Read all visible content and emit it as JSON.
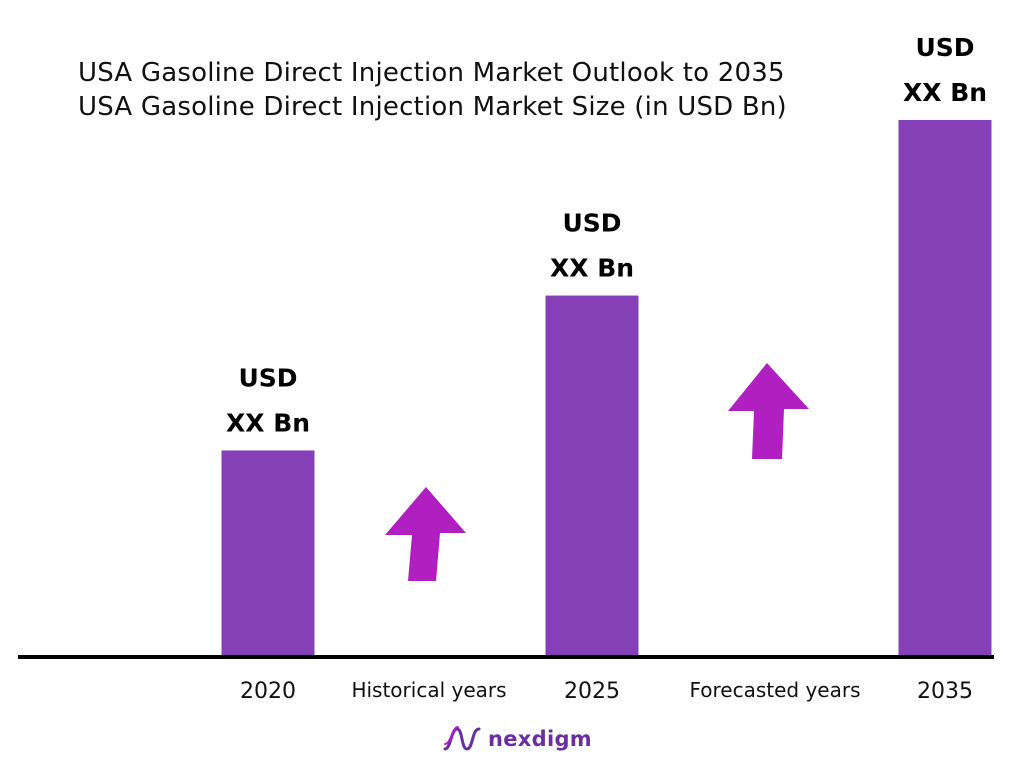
{
  "title": "USA Gasoline Direct Injection Market Outlook to 2035",
  "subtitle": "USA Gasoline Direct Injection Market Size (in USD Bn)",
  "colors": {
    "bar": "#8540b8",
    "arrow": "#b01fc0",
    "axis": "#000000",
    "text": "#111111",
    "logo": "#6a2ea0"
  },
  "chart_data": {
    "type": "bar",
    "title": "USA Gasoline Direct Injection Market Outlook to 2035",
    "subtitle": "USA Gasoline Direct Injection Market Size (in USD Bn)",
    "categories": [
      "2020",
      "2025",
      "2035"
    ],
    "values": [
      1.0,
      1.75,
      2.6
    ],
    "data_labels": [
      [
        "USD",
        "XX Bn"
      ],
      [
        "USD",
        "XX Bn"
      ],
      [
        "USD",
        "XX Bn"
      ]
    ],
    "between_labels": [
      "Historical years",
      "Forecasted years"
    ],
    "ylim": [
      0,
      2.6
    ],
    "grid": false,
    "annotations": [
      "up-arrow",
      "up-arrow"
    ]
  },
  "logo": {
    "icon": "nexdigm-wave-icon",
    "text": "nexdigm"
  }
}
